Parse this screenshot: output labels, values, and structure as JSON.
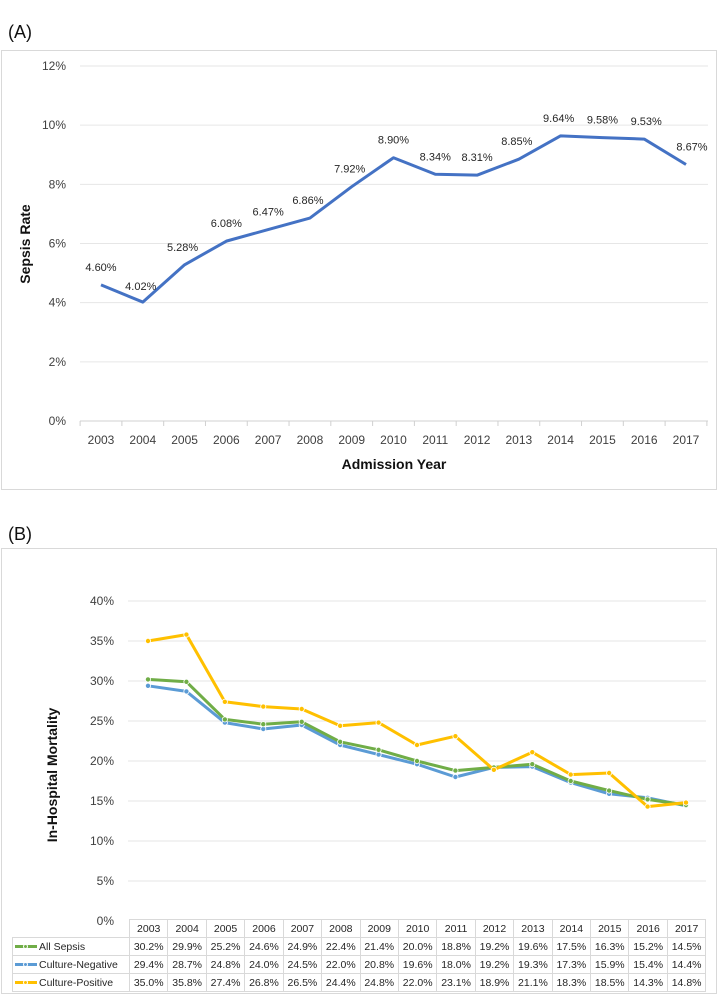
{
  "panel_a_label": "(A)",
  "panel_b_label": "(B)",
  "chart_data": [
    {
      "type": "line",
      "panel": "A",
      "title": "",
      "xlabel": "Admission Year",
      "ylabel": "Sepsis Rate",
      "ylim": [
        0,
        12
      ],
      "yticks": [
        "0%",
        "2%",
        "4%",
        "6%",
        "8%",
        "10%",
        "12%"
      ],
      "ytick_values": [
        0,
        2,
        4,
        6,
        8,
        10,
        12
      ],
      "grid": true,
      "legend": "none",
      "categories": [
        "2003",
        "2004",
        "2005",
        "2006",
        "2007",
        "2008",
        "2009",
        "2010",
        "2011",
        "2012",
        "2013",
        "2014",
        "2015",
        "2016",
        "2017"
      ],
      "series": [
        {
          "name": "Sepsis Rate",
          "color": "#4472c4",
          "values": [
            4.6,
            4.02,
            5.28,
            6.08,
            6.47,
            6.86,
            7.92,
            8.9,
            8.34,
            8.31,
            8.85,
            9.64,
            9.58,
            9.53,
            8.67
          ],
          "labels": [
            "4.60%",
            "4.02%",
            "5.28%",
            "6.08%",
            "6.47%",
            "6.86%",
            "7.92%",
            "8.90%",
            "8.34%",
            "8.31%",
            "8.85%",
            "9.64%",
            "9.58%",
            "9.53%",
            "8.67%"
          ]
        }
      ]
    },
    {
      "type": "line",
      "panel": "B",
      "title": "",
      "xlabel": "",
      "ylabel": "In-Hospital Mortality",
      "ylim": [
        0,
        40
      ],
      "yticks": [
        "0%",
        "5%",
        "10%",
        "15%",
        "20%",
        "25%",
        "30%",
        "35%",
        "40%"
      ],
      "ytick_values": [
        0,
        5,
        10,
        15,
        20,
        25,
        30,
        35,
        40
      ],
      "grid": true,
      "legend": "data-table-bottom",
      "categories": [
        "2003",
        "2004",
        "2005",
        "2006",
        "2007",
        "2008",
        "2009",
        "2010",
        "2011",
        "2012",
        "2013",
        "2014",
        "2015",
        "2016",
        "2017"
      ],
      "series": [
        {
          "name": "All Sepsis",
          "color": "#70ad47",
          "values": [
            30.2,
            29.9,
            25.2,
            24.6,
            24.9,
            22.4,
            21.4,
            20.0,
            18.8,
            19.2,
            19.6,
            17.5,
            16.3,
            15.2,
            14.5
          ],
          "labels": [
            "30.2%",
            "29.9%",
            "25.2%",
            "24.6%",
            "24.9%",
            "22.4%",
            "21.4%",
            "20.0%",
            "18.8%",
            "19.2%",
            "19.6%",
            "17.5%",
            "16.3%",
            "15.2%",
            "14.5%"
          ]
        },
        {
          "name": "Culture-Negative",
          "color": "#5b9bd5",
          "values": [
            29.4,
            28.7,
            24.8,
            24.0,
            24.5,
            22.0,
            20.8,
            19.6,
            18.0,
            19.2,
            19.3,
            17.3,
            15.9,
            15.4,
            14.4
          ],
          "labels": [
            "29.4%",
            "28.7%",
            "24.8%",
            "24.0%",
            "24.5%",
            "22.0%",
            "20.8%",
            "19.6%",
            "18.0%",
            "19.2%",
            "19.3%",
            "17.3%",
            "15.9%",
            "15.4%",
            "14.4%"
          ]
        },
        {
          "name": "Culture-Positive",
          "color": "#ffc000",
          "values": [
            35.0,
            35.8,
            27.4,
            26.8,
            26.5,
            24.4,
            24.8,
            22.0,
            23.1,
            18.9,
            21.1,
            18.3,
            18.5,
            14.3,
            14.8
          ],
          "labels": [
            "35.0%",
            "35.8%",
            "27.4%",
            "26.8%",
            "26.5%",
            "24.4%",
            "24.8%",
            "22.0%",
            "23.1%",
            "18.9%",
            "21.1%",
            "18.3%",
            "18.5%",
            "14.3%",
            "14.8%"
          ]
        }
      ]
    }
  ]
}
